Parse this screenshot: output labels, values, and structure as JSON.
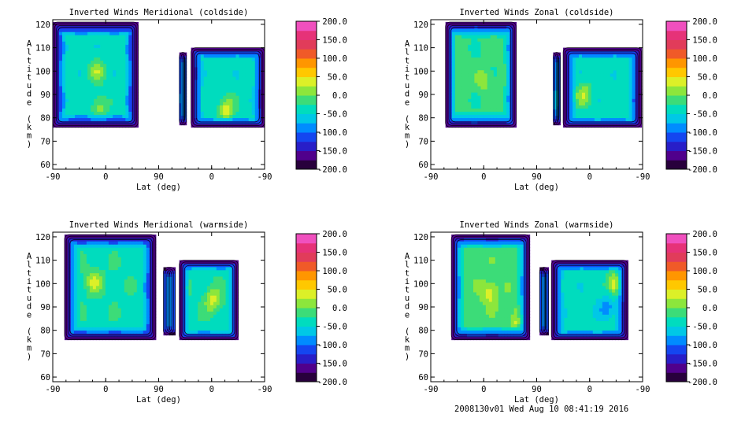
{
  "chart_data": [
    {
      "type": "heatmap",
      "title": "Inverted Winds Meridional (coldside)",
      "xlabel": "Lat (deg)",
      "ylabel": "Altitude (km)",
      "x_ticks": [
        "-90",
        "0",
        "90",
        "0",
        "-90"
      ],
      "y_ticks": [
        "60",
        "70",
        "80",
        "90",
        "100",
        "110",
        "120"
      ],
      "ylim": [
        58,
        122
      ],
      "colorbar_ticks": [
        "200.0",
        "150.0",
        "100.0",
        "50.0",
        "0.0",
        "-50.0",
        "-100.0",
        "-150.0",
        "-200.0"
      ],
      "value_range": [
        -200,
        200
      ],
      "regions": [
        {
          "x_range": [
            -90,
            55
          ],
          "alt_range": [
            76,
            121
          ],
          "typical_value": -40,
          "peaks": [
            {
              "lat": -15,
              "alt": 100,
              "value": 20
            },
            {
              "lat": -10,
              "alt": 85,
              "value": 10
            }
          ]
        },
        {
          "x_range": [
            125,
            137
          ],
          "alt_range": [
            77,
            108
          ],
          "typical_value": -80,
          "peaks": []
        },
        {
          "x_range": [
            145,
            270
          ],
          "alt_range": [
            76,
            110
          ],
          "typical_value": -40,
          "peaks": [
            {
              "lat": 205,
              "alt": 84,
              "value": 40
            }
          ]
        }
      ]
    },
    {
      "type": "heatmap",
      "title": "Inverted Winds Zonal (coldside)",
      "xlabel": "Lat (deg)",
      "ylabel": "Altitude (km)",
      "x_ticks": [
        "-90",
        "0",
        "90",
        "0",
        "-90"
      ],
      "y_ticks": [
        "60",
        "70",
        "80",
        "90",
        "100",
        "110",
        "120"
      ],
      "ylim": [
        58,
        122
      ],
      "colorbar_ticks": [
        "200.0",
        "150.0",
        "100.0",
        "50.0",
        "0.0",
        "-50.0",
        "-100.0",
        "-150.0",
        "-200.0"
      ],
      "value_range": [
        -200,
        200
      ],
      "regions": [
        {
          "x_range": [
            -65,
            55
          ],
          "alt_range": [
            76,
            121
          ],
          "typical_value": -20,
          "peaks": [
            {
              "lat": 0,
              "alt": 96,
              "value": 15
            },
            {
              "lat": -45,
              "alt": 100,
              "value": 10
            }
          ]
        },
        {
          "x_range": [
            118,
            130
          ],
          "alt_range": [
            77,
            108
          ],
          "typical_value": -80,
          "peaks": []
        },
        {
          "x_range": [
            135,
            268
          ],
          "alt_range": [
            76,
            110
          ],
          "typical_value": -40,
          "peaks": [
            {
              "lat": 170,
              "alt": 90,
              "value": 25
            }
          ]
        }
      ]
    },
    {
      "type": "heatmap",
      "title": "Inverted Winds Meridional (warmside)",
      "xlabel": "Lat (deg)",
      "ylabel": "Altitude (km)",
      "x_ticks": [
        "-90",
        "0",
        "90",
        "0",
        "-90"
      ],
      "y_ticks": [
        "60",
        "70",
        "80",
        "90",
        "100",
        "110",
        "120"
      ],
      "ylim": [
        58,
        122
      ],
      "colorbar_ticks": [
        "200.0",
        "150.0",
        "100.0",
        "50.0",
        "0.0",
        "-50.0",
        "-100.0",
        "-150.0",
        "-200.0"
      ],
      "value_range": [
        -200,
        200
      ],
      "regions": [
        {
          "x_range": [
            -70,
            85
          ],
          "alt_range": [
            76,
            121
          ],
          "typical_value": -30,
          "peaks": [
            {
              "lat": -20,
              "alt": 101,
              "value": 30
            },
            {
              "lat": -70,
              "alt": 92,
              "value": 10
            }
          ]
        },
        {
          "x_range": [
            98,
            118
          ],
          "alt_range": [
            78,
            107
          ],
          "typical_value": -90,
          "peaks": []
        },
        {
          "x_range": [
            125,
            225
          ],
          "alt_range": [
            76,
            110
          ],
          "typical_value": -30,
          "peaks": [
            {
              "lat": 183,
              "alt": 93,
              "value": 35
            }
          ]
        }
      ]
    },
    {
      "type": "heatmap",
      "title": "Inverted Winds Zonal (warmside)",
      "xlabel": "Lat (deg)",
      "ylabel": "Altitude (km)",
      "x_ticks": [
        "-90",
        "0",
        "90",
        "0",
        "-90"
      ],
      "y_ticks": [
        "60",
        "70",
        "80",
        "90",
        "100",
        "110",
        "120"
      ],
      "ylim": [
        58,
        122
      ],
      "colorbar_ticks": [
        "200.0",
        "150.0",
        "100.0",
        "50.0",
        "0.0",
        "-50.0",
        "-100.0",
        "-150.0",
        "-200.0"
      ],
      "value_range": [
        -200,
        200
      ],
      "regions": [
        {
          "x_range": [
            -55,
            78
          ],
          "alt_range": [
            76,
            121
          ],
          "typical_value": -10,
          "peaks": [
            {
              "lat": 10,
              "alt": 96,
              "value": 40
            },
            {
              "lat": 60,
              "alt": 84,
              "value": 35
            }
          ]
        },
        {
          "x_range": [
            95,
            110
          ],
          "alt_range": [
            78,
            107
          ],
          "typical_value": -90,
          "peaks": []
        },
        {
          "x_range": [
            115,
            245
          ],
          "alt_range": [
            76,
            110
          ],
          "typical_value": -40,
          "peaks": [
            {
              "lat": 225,
              "alt": 100,
              "value": 60
            },
            {
              "lat": 210,
              "alt": 90,
              "value": -90
            }
          ]
        }
      ]
    }
  ],
  "footer": "2008130v01 Wed Aug 10 08:41:19 2016"
}
